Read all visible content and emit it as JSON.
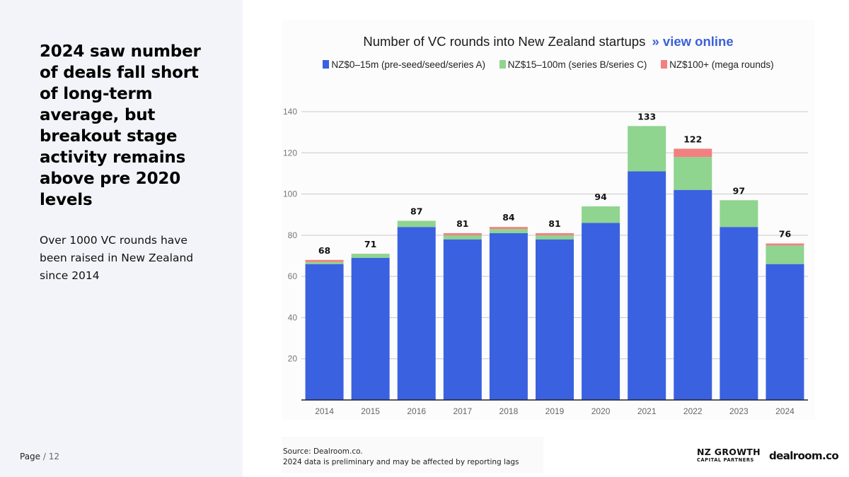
{
  "sidebar": {
    "headline": "2024 saw number of deals fall short of long-term average, but breakout stage activity remains above pre 2020 levels",
    "subtext": "Over 1000 VC rounds have been raised in New Zealand since 2014"
  },
  "footer": {
    "page_label": "Page",
    "page_separator": "/",
    "page_number": "12",
    "source_line1": "Source:  Dealroom.co.",
    "source_line2": "2024 data is preliminary and may be affected by reporting lags",
    "logo_nzgcp_line1": "NZ GROWTH",
    "logo_nzgcp_line2": "CAPITAL PARTNERS",
    "logo_dealroom": "dealroom.co"
  },
  "chart_header": {
    "title": "Number of VC rounds into New Zealand startups",
    "link_arrow": "»",
    "link_text": "view online"
  },
  "colors": {
    "series_0_15m": "#3a61e0",
    "series_15_100m": "#8fd48f",
    "series_100plus": "#f28080",
    "grid": "#c8c8c8",
    "axis": "#222222"
  },
  "chart_data": {
    "type": "bar",
    "stacked": true,
    "title": "Number of VC rounds into New Zealand startups",
    "xlabel": "",
    "ylabel": "",
    "ylim": [
      0,
      140
    ],
    "yticks": [
      20,
      40,
      60,
      80,
      100,
      120,
      140
    ],
    "grid": true,
    "legend_position": "top",
    "categories": [
      "2014",
      "2015",
      "2016",
      "2017",
      "2018",
      "2019",
      "2020",
      "2021",
      "2022",
      "2023",
      "2024"
    ],
    "series": [
      {
        "name": "NZ$0–15m (pre-seed/seed/series A)",
        "values": [
          66,
          69,
          84,
          78,
          81,
          78,
          86,
          111,
          102,
          84,
          66
        ]
      },
      {
        "name": "NZ$15–100m (series B/series C)",
        "values": [
          1,
          2,
          3,
          2,
          2,
          2,
          8,
          22,
          16,
          13,
          9
        ]
      },
      {
        "name": "NZ$100+ (mega rounds)",
        "values": [
          1,
          0,
          0,
          1,
          1,
          1,
          0,
          0,
          4,
          0,
          1
        ]
      }
    ],
    "totals": [
      68,
      71,
      87,
      81,
      84,
      81,
      94,
      133,
      122,
      97,
      76
    ]
  }
}
